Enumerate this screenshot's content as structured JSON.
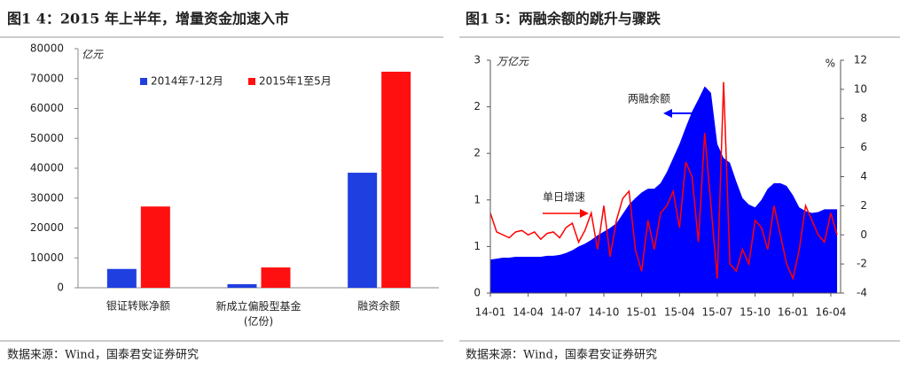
{
  "chart_data": [
    {
      "type": "bar",
      "title": "图1 4：2015 年上半年，增量资金加速入市",
      "y_unit": "亿元",
      "categories": [
        "银证转账净额",
        "新成立偏股型基金\n(亿份)",
        "融资余额"
      ],
      "series": [
        {
          "name": "2014年7-12月",
          "color": "#1f3fe0",
          "values": [
            6300,
            1200,
            38500
          ]
        },
        {
          "name": "2015年1至5月",
          "color": "#ff1010",
          "values": [
            27200,
            6800,
            72300
          ]
        }
      ],
      "ylim": [
        0,
        80000
      ],
      "yticks": [
        0,
        10000,
        20000,
        30000,
        40000,
        50000,
        60000,
        70000,
        80000
      ],
      "source": "数据来源：Wind，国泰君安证券研究"
    },
    {
      "type": "area-line",
      "title": "图1 5：两融余额的跳升与骤跌",
      "y_unit": "万亿元",
      "y2_unit": "%",
      "x": [
        "14-01",
        null,
        null,
        null,
        null,
        null,
        "14-04",
        null,
        null,
        null,
        null,
        null,
        "14-07",
        null,
        null,
        null,
        null,
        null,
        "14-10",
        null,
        null,
        null,
        null,
        null,
        "15-01",
        null,
        null,
        null,
        null,
        null,
        "15-04",
        null,
        null,
        null,
        null,
        null,
        "15-07",
        null,
        null,
        null,
        null,
        null,
        "15-10",
        null,
        null,
        null,
        null,
        null,
        "16-01",
        null,
        null,
        null,
        null,
        null,
        "16-04",
        null
      ],
      "series": [
        {
          "name": "两融余额",
          "color": "#0000ff",
          "values": [
            0.36,
            0.37,
            0.38,
            0.38,
            0.39,
            0.39,
            0.39,
            0.39,
            0.39,
            0.4,
            0.4,
            0.41,
            0.43,
            0.46,
            0.5,
            0.53,
            0.57,
            0.62,
            0.66,
            0.7,
            0.75,
            0.85,
            0.95,
            1.02,
            1.08,
            1.12,
            1.12,
            1.18,
            1.3,
            1.45,
            1.6,
            1.78,
            1.95,
            2.08,
            2.22,
            2.15,
            1.6,
            1.45,
            1.4,
            1.2,
            1.02,
            0.95,
            0.92,
            1.0,
            1.12,
            1.18,
            1.18,
            1.15,
            1.05,
            0.92,
            0.88,
            0.86,
            0.87,
            0.9,
            0.9,
            0.9
          ]
        },
        {
          "name": "单日增速",
          "color": "#ff0000",
          "axis": "y2",
          "values": [
            1.5,
            0.2,
            0,
            -0.2,
            0.2,
            0.3,
            0,
            0.2,
            -0.3,
            0.1,
            0.2,
            -0.2,
            0.5,
            0.8,
            -0.5,
            0.3,
            1.5,
            -1,
            2,
            -1.5,
            1,
            2.5,
            3,
            -1,
            -2.5,
            1,
            -1,
            1.5,
            2,
            3,
            0.5,
            5,
            4,
            -0.5,
            7,
            2,
            -3,
            10.5,
            -2,
            -2.5,
            -1,
            -2,
            1,
            0.5,
            -1,
            2,
            0,
            -2,
            -3,
            -1,
            2,
            1,
            0,
            -0.5,
            1.5,
            0
          ]
        }
      ],
      "ylim": [
        0,
        2.5
      ],
      "yticks": [
        0,
        {
          "value": 0.5,
          "label": "1"
        },
        1,
        {
          "value": 1.5,
          "label": "2"
        },
        2,
        {
          "value": 2.5,
          "label": "3"
        }
      ],
      "y2lim": [
        -4,
        12
      ],
      "y2ticks": [
        -4,
        -2,
        0,
        2,
        4,
        6,
        8,
        10,
        12
      ],
      "source": "数据来源：Wind，国泰君安证券研究"
    }
  ]
}
